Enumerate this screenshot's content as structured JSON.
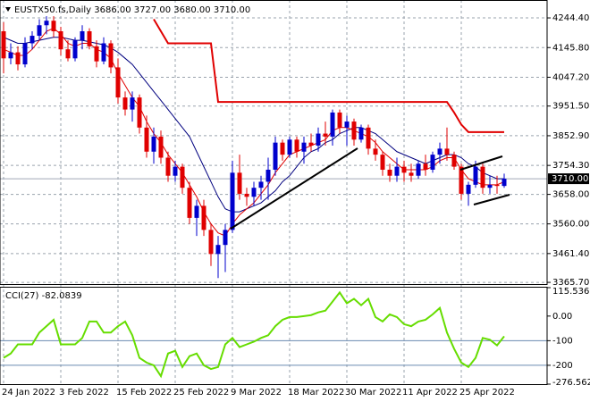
{
  "chart_data": [
    {
      "type": "candlestick",
      "title": "EUSTX50.fs,Daily  3686.00 3727.00 3680.00 3710.00",
      "categories": [
        "24 Jan 2022",
        null,
        null,
        null,
        null,
        null,
        null,
        null,
        "3 Feb 2022",
        null,
        null,
        null,
        null,
        null,
        null,
        null,
        "15 Feb 2022",
        null,
        null,
        null,
        null,
        null,
        null,
        null,
        "25 Feb 2022",
        null,
        null,
        null,
        null,
        null,
        null,
        null,
        "9 Mar 2022",
        null,
        null,
        null,
        null,
        null,
        null,
        null,
        "18 Mar 2022",
        null,
        null,
        null,
        null,
        null,
        null,
        null,
        "30 Mar 2022",
        null,
        null,
        null,
        null,
        null,
        null,
        null,
        "11 Apr 2022",
        null,
        null,
        null,
        null,
        null,
        null,
        null,
        "25 Apr 2022",
        null,
        null,
        null,
        null,
        null,
        null
      ],
      "open": [
        4200,
        4110,
        4130,
        4090,
        4160,
        4185,
        4220,
        4235,
        4200,
        4140,
        4110,
        4170,
        4200,
        4150,
        4100,
        4160,
        4080,
        3980,
        3940,
        3980,
        3880,
        3800,
        3850,
        3780,
        3720,
        3750,
        3680,
        3580,
        3620,
        3540,
        3460,
        3490,
        3540,
        3730,
        3660,
        3650,
        3680,
        3700,
        3740,
        3830,
        3790,
        3840,
        3800,
        3830,
        3820,
        3860,
        3850,
        3930,
        3880,
        3900,
        3840,
        3880,
        3810,
        3790,
        3740,
        3720,
        3750,
        3730,
        3720,
        3760,
        3740,
        3790,
        3810,
        3790,
        3750,
        3660,
        3690,
        3750,
        3680,
        3690,
        3686
      ],
      "high": [
        4230,
        4160,
        4150,
        4180,
        4200,
        4240,
        4250,
        4250,
        4215,
        4170,
        4180,
        4220,
        4210,
        4170,
        4180,
        4170,
        4110,
        4000,
        4000,
        3990,
        3920,
        3880,
        3870,
        3800,
        3770,
        3760,
        3700,
        3640,
        3640,
        3560,
        3520,
        3560,
        3770,
        3790,
        3680,
        3700,
        3720,
        3780,
        3850,
        3840,
        3850,
        3850,
        3850,
        3860,
        3880,
        3900,
        3940,
        3940,
        3920,
        3910,
        3890,
        3890,
        3840,
        3800,
        3760,
        3780,
        3770,
        3760,
        3770,
        3790,
        3800,
        3830,
        3880,
        3800,
        3760,
        3700,
        3770,
        3760,
        3720,
        3720,
        3727
      ],
      "low": [
        4060,
        4090,
        4070,
        4080,
        4140,
        4170,
        4190,
        4180,
        4120,
        4100,
        4100,
        4140,
        4140,
        4080,
        4090,
        4060,
        3960,
        3920,
        3900,
        3860,
        3780,
        3760,
        3760,
        3700,
        3700,
        3660,
        3560,
        3520,
        3520,
        3420,
        3380,
        3400,
        3530,
        3640,
        3620,
        3620,
        3640,
        3640,
        3720,
        3770,
        3780,
        3780,
        3760,
        3800,
        3800,
        3820,
        3820,
        3860,
        3820,
        3820,
        3830,
        3790,
        3770,
        3720,
        3700,
        3700,
        3700,
        3700,
        3710,
        3720,
        3730,
        3760,
        3770,
        3740,
        3640,
        3620,
        3680,
        3660,
        3660,
        3660,
        3680
      ],
      "close": [
        4110,
        4130,
        4090,
        4160,
        4185,
        4220,
        4235,
        4200,
        4140,
        4110,
        4170,
        4200,
        4150,
        4100,
        4160,
        4080,
        3980,
        3940,
        3980,
        3880,
        3800,
        3850,
        3780,
        3720,
        3750,
        3680,
        3580,
        3620,
        3540,
        3460,
        3490,
        3540,
        3730,
        3660,
        3650,
        3680,
        3700,
        3740,
        3830,
        3790,
        3840,
        3800,
        3830,
        3820,
        3860,
        3850,
        3930,
        3880,
        3900,
        3840,
        3880,
        3810,
        3790,
        3740,
        3720,
        3750,
        3730,
        3720,
        3760,
        3740,
        3790,
        3810,
        3790,
        3750,
        3660,
        3690,
        3750,
        3680,
        3690,
        3686,
        3710
      ],
      "up_color": "#0000cd",
      "down_color": "#e00000",
      "series": [
        {
          "color": "#00007f",
          "width": 1,
          "values": [
            4180,
            4170,
            4160,
            4160,
            4165,
            4170,
            4175,
            4180,
            4180,
            4175,
            4170,
            4170,
            4165,
            4160,
            4155,
            4145,
            4130,
            4110,
            4090,
            4060,
            4030,
            4000,
            3970,
            3940,
            3910,
            3880,
            3850,
            3800,
            3750,
            3700,
            3650,
            3610,
            3600,
            3600,
            3610,
            3620,
            3630,
            3650,
            3670,
            3700,
            3720,
            3750,
            3780,
            3800,
            3810,
            3830,
            3840,
            3860,
            3870,
            3880,
            3880,
            3870,
            3860,
            3840,
            3820,
            3800,
            3790,
            3780,
            3770,
            3760,
            3770,
            3780,
            3790,
            3790,
            3780,
            3760,
            3750,
            3730,
            3720,
            3710,
            3710
          ]
        },
        {
          "color": "#e00000",
          "width": 1,
          "values": [
            4140,
            4130,
            4120,
            4120,
            4140,
            4170,
            4200,
            4210,
            4190,
            4160,
            4150,
            4160,
            4160,
            4140,
            4130,
            4110,
            4060,
            4020,
            3980,
            3950,
            3900,
            3860,
            3830,
            3790,
            3760,
            3730,
            3690,
            3650,
            3600,
            3560,
            3530,
            3520,
            3560,
            3590,
            3610,
            3630,
            3660,
            3690,
            3730,
            3760,
            3790,
            3800,
            3810,
            3820,
            3830,
            3840,
            3870,
            3880,
            3880,
            3870,
            3860,
            3850,
            3830,
            3800,
            3780,
            3760,
            3740,
            3740,
            3740,
            3740,
            3750,
            3770,
            3780,
            3780,
            3740,
            3710,
            3700,
            3690,
            3690,
            3690,
            3700
          ]
        },
        {
          "color": "#e00000",
          "width": 2,
          "values": [
            null,
            null,
            null,
            null,
            null,
            null,
            null,
            null,
            null,
            null,
            null,
            null,
            null,
            null,
            null,
            null,
            null,
            null,
            null,
            null,
            null,
            4240,
            4200,
            4160,
            4160,
            4160,
            4160,
            4160,
            4160,
            4160,
            3965,
            3965,
            3965,
            3965,
            3965,
            3965,
            3965,
            3965,
            3965,
            3965,
            3965,
            3965,
            3965,
            3965,
            3965,
            3965,
            3965,
            3965,
            3965,
            3965,
            3965,
            3965,
            3965,
            3965,
            3965,
            3965,
            3965,
            3965,
            3965,
            3965,
            3965,
            3965,
            3965,
            3930,
            3890,
            3865,
            3865,
            3865,
            3865,
            3865,
            3865
          ]
        }
      ],
      "last_price": {
        "value": 3710,
        "label": "3710.00"
      },
      "ylim": [
        3360,
        4292
      ],
      "yticks": [
        {
          "value": 4244.4,
          "label": "4244.40"
        },
        {
          "value": 4145.8,
          "label": "4145.80"
        },
        {
          "value": 4047.2,
          "label": "4047.20"
        },
        {
          "value": 3951.5,
          "label": "3951.50"
        },
        {
          "value": 3852.9,
          "label": "3852.90"
        },
        {
          "value": 3754.3,
          "label": "3754.30"
        },
        {
          "value": 3658,
          "label": "3658.00"
        },
        {
          "value": 3560,
          "label": "3560.00"
        },
        {
          "value": 3461.4,
          "label": "3461.40"
        },
        {
          "value": 3365.7,
          "label": "3365.70"
        }
      ],
      "grid": true
    },
    {
      "type": "line",
      "title": "CCI(27) -82.0839",
      "series": [
        {
          "color": "#66dd00",
          "width": 2,
          "values": [
            -170,
            -152,
            -115,
            -115,
            -115,
            -67,
            -41,
            -15,
            -115,
            -115,
            -115,
            -89,
            -22,
            -22,
            -67,
            -67,
            -41,
            -22,
            -78,
            -170,
            -189,
            -200,
            -244,
            -152,
            -141,
            -207,
            -163,
            -152,
            -200,
            -215,
            -207,
            -115,
            -89,
            -126,
            -115,
            -104,
            -89,
            -78,
            -41,
            -15,
            -4,
            -4,
            0,
            4,
            15,
            22,
            59,
            96,
            52,
            70,
            44,
            70,
            -4,
            -22,
            7,
            -4,
            -33,
            -41,
            -22,
            -15,
            7,
            33,
            -67,
            -133,
            -189,
            -207,
            -170,
            -89,
            -96,
            -119,
            -82.0839
          ]
        }
      ],
      "ylim": [
        -276.5625,
        115.536
      ],
      "yticks": [
        115.536,
        {
          "value": 0,
          "label": "0.00"
        },
        -100,
        -200,
        -276.5625
      ],
      "level_lines": [
        -100,
        -200
      ]
    }
  ]
}
